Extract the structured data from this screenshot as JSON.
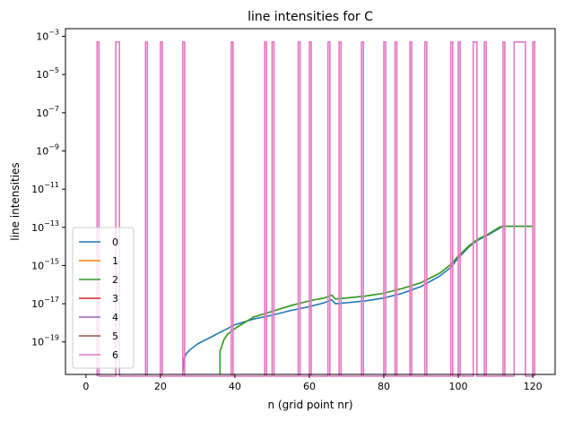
{
  "chart_data": {
    "type": "line",
    "title": "line intensities for C",
    "xlabel": "n (grid point nr)",
    "ylabel": "line intensities",
    "yscale": "log",
    "xlim": [
      -5.5,
      126
    ],
    "ylim_log10": [
      -20.7,
      -2.6
    ],
    "x_ticks": [
      {
        "value": 0,
        "label": "0"
      },
      {
        "value": 20,
        "label": "20"
      },
      {
        "value": 40,
        "label": "40"
      },
      {
        "value": 60,
        "label": "60"
      },
      {
        "value": 80,
        "label": "80"
      },
      {
        "value": 100,
        "label": "100"
      },
      {
        "value": 120,
        "label": "120"
      }
    ],
    "y_ticks": [
      {
        "exp": -3,
        "base": "10",
        "power": "−3"
      },
      {
        "exp": -5,
        "base": "10",
        "power": "−5"
      },
      {
        "exp": -7,
        "base": "10",
        "power": "−7"
      },
      {
        "exp": -9,
        "base": "10",
        "power": "−9"
      },
      {
        "exp": -11,
        "base": "10",
        "power": "−11"
      },
      {
        "exp": -13,
        "base": "10",
        "power": "−13"
      },
      {
        "exp": -15,
        "base": "10",
        "power": "−15"
      },
      {
        "exp": -17,
        "base": "10",
        "power": "−17"
      },
      {
        "exp": -19,
        "base": "10",
        "power": "−19"
      }
    ],
    "grid": false,
    "legend_position": "lower-left",
    "series": [
      {
        "name": "0",
        "color": "#1f77b4",
        "points_log10": [
          [
            26,
            -20.6
          ],
          [
            26.3,
            -19.9
          ],
          [
            27,
            -19.6
          ],
          [
            28,
            -19.4
          ],
          [
            30,
            -19.1
          ],
          [
            33,
            -18.8
          ],
          [
            36,
            -18.5
          ],
          [
            40,
            -18.1
          ],
          [
            45,
            -17.8
          ],
          [
            50,
            -17.6
          ],
          [
            55,
            -17.35
          ],
          [
            60,
            -17.15
          ],
          [
            64,
            -16.95
          ],
          [
            66,
            -16.8
          ],
          [
            67,
            -17.0
          ],
          [
            70,
            -16.95
          ],
          [
            75,
            -16.85
          ],
          [
            80,
            -16.7
          ],
          [
            85,
            -16.45
          ],
          [
            90,
            -16.1
          ],
          [
            95,
            -15.55
          ],
          [
            98,
            -15.1
          ],
          [
            100,
            -14.6
          ],
          [
            103,
            -14.0
          ],
          [
            105,
            -13.7
          ],
          [
            108,
            -13.4
          ],
          [
            111,
            -13.05
          ],
          [
            112,
            -12.95
          ],
          [
            120,
            -12.95
          ]
        ]
      },
      {
        "name": "1",
        "color": "#ff7f0e",
        "points_log10": [
          [
            36,
            -20.7
          ],
          [
            36,
            -19.5
          ],
          [
            37,
            -18.9
          ],
          [
            38,
            -18.6
          ],
          [
            40,
            -18.3
          ],
          [
            45,
            -17.7
          ],
          [
            50,
            -17.4
          ],
          [
            55,
            -17.1
          ],
          [
            60,
            -16.85
          ],
          [
            64,
            -16.7
          ],
          [
            66,
            -16.55
          ],
          [
            67,
            -16.75
          ],
          [
            70,
            -16.7
          ],
          [
            75,
            -16.6
          ],
          [
            80,
            -16.45
          ],
          [
            85,
            -16.2
          ],
          [
            90,
            -15.9
          ],
          [
            95,
            -15.4
          ],
          [
            98,
            -14.95
          ],
          [
            100,
            -14.5
          ],
          [
            103,
            -13.95
          ],
          [
            105,
            -13.65
          ],
          [
            108,
            -13.35
          ],
          [
            111,
            -13.0
          ],
          [
            112,
            -12.95
          ],
          [
            120,
            -12.95
          ]
        ]
      },
      {
        "name": "2",
        "color": "#2ca02c",
        "points_log10": [
          [
            36,
            -20.7
          ],
          [
            36,
            -19.5
          ],
          [
            37,
            -18.9
          ],
          [
            38,
            -18.6
          ],
          [
            40,
            -18.3
          ],
          [
            45,
            -17.7
          ],
          [
            50,
            -17.4
          ],
          [
            55,
            -17.1
          ],
          [
            60,
            -16.85
          ],
          [
            64,
            -16.7
          ],
          [
            66,
            -16.55
          ],
          [
            67,
            -16.75
          ],
          [
            70,
            -16.7
          ],
          [
            75,
            -16.6
          ],
          [
            80,
            -16.45
          ],
          [
            85,
            -16.2
          ],
          [
            90,
            -15.9
          ],
          [
            95,
            -15.4
          ],
          [
            98,
            -14.95
          ],
          [
            100,
            -14.5
          ],
          [
            103,
            -13.95
          ],
          [
            105,
            -13.65
          ],
          [
            108,
            -13.35
          ],
          [
            111,
            -13.0
          ],
          [
            112,
            -12.95
          ],
          [
            120,
            -12.95
          ]
        ]
      },
      {
        "name": "3",
        "color": "#d62728",
        "points_log10": []
      },
      {
        "name": "4",
        "color": "#9467bd",
        "points_log10": []
      },
      {
        "name": "5",
        "color": "#8c564b",
        "points_log10": []
      },
      {
        "name": "6",
        "color": "#e377c2",
        "spike_high_log10": -3.3,
        "spike_ranges": [
          [
            3,
            3.5
          ],
          [
            8,
            9
          ],
          [
            16,
            16.5
          ],
          [
            20,
            20.5
          ],
          [
            26,
            26.5
          ],
          [
            39,
            39.5
          ],
          [
            48,
            48.5
          ],
          [
            50,
            50.5
          ],
          [
            57,
            57.5
          ],
          [
            60,
            60.5
          ],
          [
            65,
            65.5
          ],
          [
            68,
            68.5
          ],
          [
            74,
            74.5
          ],
          [
            80,
            80.5
          ],
          [
            83,
            83.5
          ],
          [
            87,
            87.5
          ],
          [
            91,
            91.5
          ],
          [
            98,
            98.5
          ],
          [
            100,
            100.5
          ],
          [
            104,
            105
          ],
          [
            107,
            107.5
          ],
          [
            112,
            112.5
          ],
          [
            115,
            118
          ],
          [
            120,
            120.5
          ]
        ]
      }
    ]
  }
}
